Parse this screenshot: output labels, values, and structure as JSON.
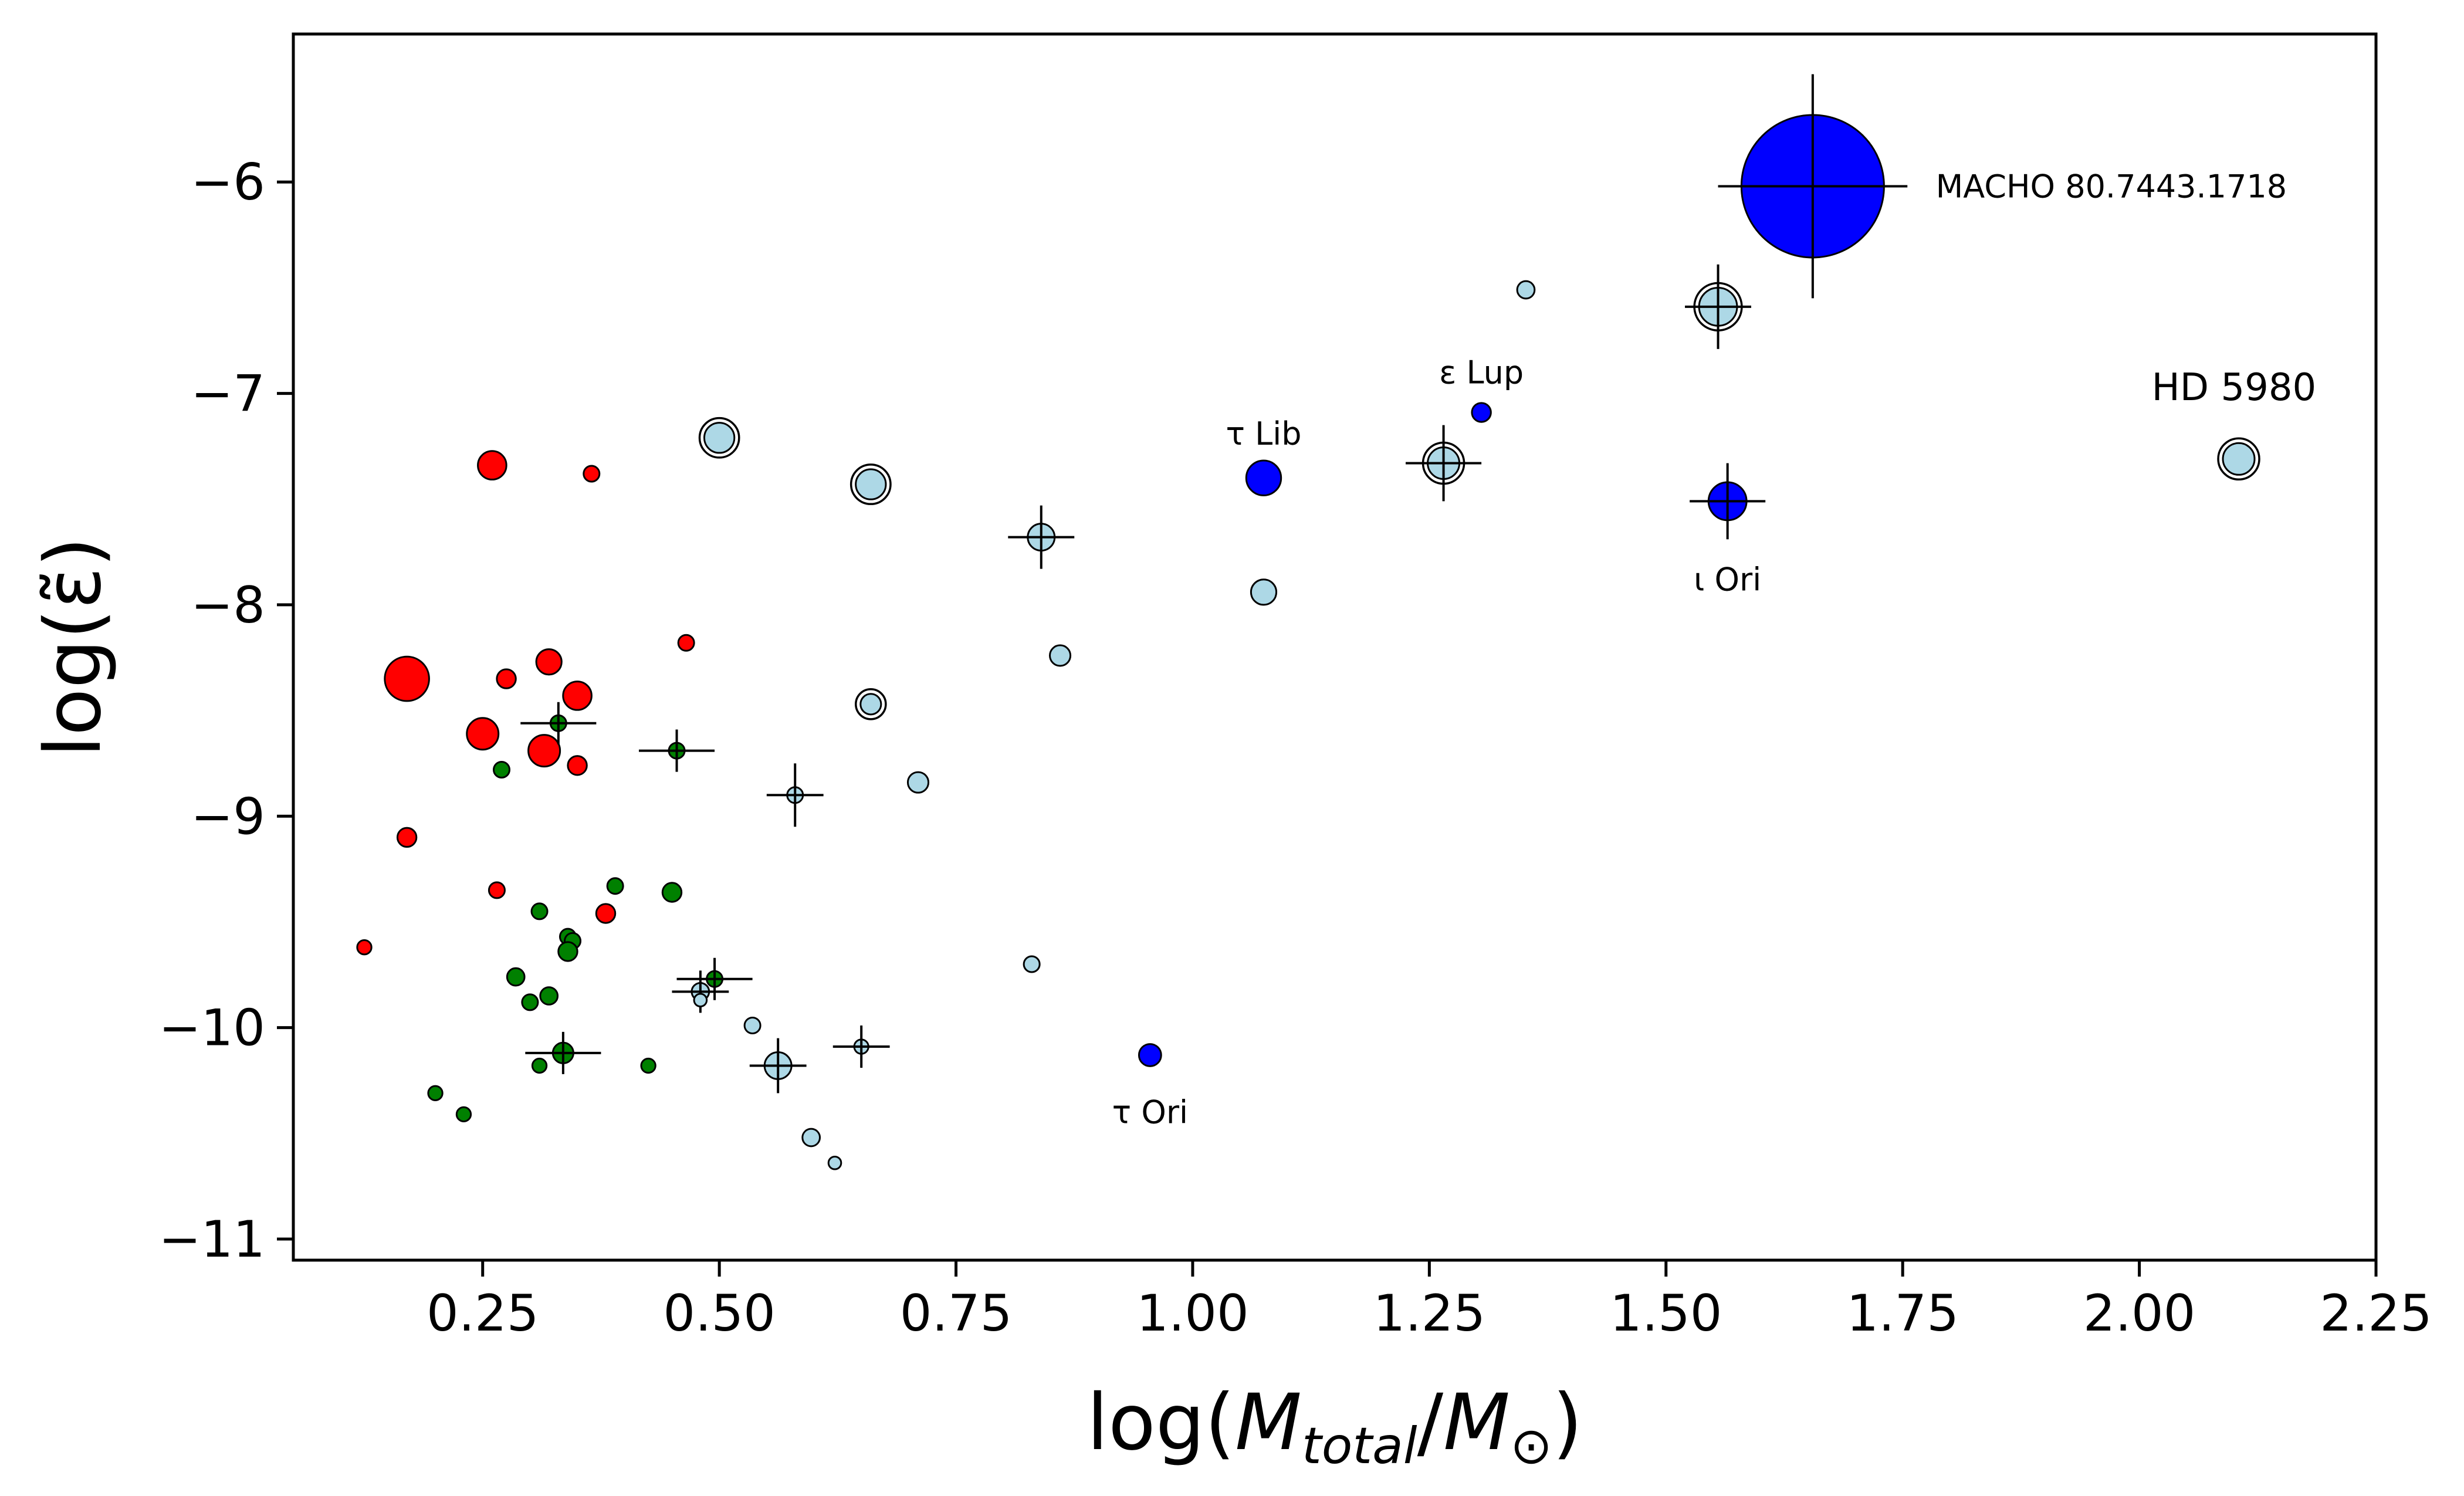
{
  "chart_data": {
    "type": "scatter",
    "title": "",
    "xlabel": "log(M_total/M_⊙)",
    "ylabel": "log(ε̃)",
    "xlim": [
      0.05,
      2.25
    ],
    "ylim": [
      -11.1,
      -5.3
    ],
    "xticks": [
      "0.25",
      "0.50",
      "0.75",
      "1.00",
      "1.25",
      "1.50",
      "1.75",
      "2.00",
      "2.25"
    ],
    "yticks": [
      "−11",
      "−10",
      "−9",
      "−8",
      "−7",
      "−6"
    ],
    "grid": false,
    "colors": {
      "red": "#ff0000",
      "green": "#008000",
      "lightblue": "#add8e6",
      "blue": "#0000ff"
    },
    "series": [
      {
        "name": "red",
        "color": "#ff0000",
        "points": [
          {
            "x": 0.17,
            "y": -8.35,
            "s": 14
          },
          {
            "x": 0.26,
            "y": -7.34,
            "s": 9
          },
          {
            "x": 0.365,
            "y": -7.38,
            "s": 5
          },
          {
            "x": 0.275,
            "y": -8.35,
            "s": 6
          },
          {
            "x": 0.32,
            "y": -8.27,
            "s": 8
          },
          {
            "x": 0.35,
            "y": -8.43,
            "s": 9
          },
          {
            "x": 0.25,
            "y": -8.61,
            "s": 10
          },
          {
            "x": 0.315,
            "y": -8.69,
            "s": 10
          },
          {
            "x": 0.35,
            "y": -8.76,
            "s": 6
          },
          {
            "x": 0.465,
            "y": -8.18,
            "s": 5
          },
          {
            "x": 0.17,
            "y": -9.1,
            "s": 6
          },
          {
            "x": 0.265,
            "y": -9.35,
            "s": 5
          },
          {
            "x": 0.38,
            "y": -9.46,
            "s": 6
          },
          {
            "x": 0.125,
            "y": -9.62,
            "s": 4.5
          }
        ]
      },
      {
        "name": "green",
        "color": "#008000",
        "points": [
          {
            "x": 0.33,
            "y": -8.56,
            "s": 5,
            "ex": 0.04,
            "ey": 0.1
          },
          {
            "x": 0.27,
            "y": -8.78,
            "s": 5
          },
          {
            "x": 0.455,
            "y": -8.69,
            "s": 5,
            "ex": 0.04,
            "ey": 0.1
          },
          {
            "x": 0.39,
            "y": -9.33,
            "s": 5
          },
          {
            "x": 0.45,
            "y": -9.36,
            "s": 6
          },
          {
            "x": 0.31,
            "y": -9.45,
            "s": 5
          },
          {
            "x": 0.34,
            "y": -9.57,
            "s": 5
          },
          {
            "x": 0.345,
            "y": -9.59,
            "s": 5
          },
          {
            "x": 0.34,
            "y": -9.64,
            "s": 6
          },
          {
            "x": 0.285,
            "y": -9.76,
            "s": 5.5
          },
          {
            "x": 0.32,
            "y": -9.85,
            "s": 5.5
          },
          {
            "x": 0.3,
            "y": -9.88,
            "s": 5
          },
          {
            "x": 0.495,
            "y": -9.77,
            "s": 5,
            "ex": 0.04,
            "ey": 0.1
          },
          {
            "x": 0.335,
            "y": -10.12,
            "s": 6.5,
            "ex": 0.04,
            "ey": 0.1
          },
          {
            "x": 0.31,
            "y": -10.18,
            "s": 4.5
          },
          {
            "x": 0.425,
            "y": -10.18,
            "s": 4.5
          },
          {
            "x": 0.2,
            "y": -10.31,
            "s": 4.5
          },
          {
            "x": 0.23,
            "y": -10.41,
            "s": 4.5
          }
        ]
      },
      {
        "name": "lightblue",
        "color": "#add8e6",
        "points": [
          {
            "x": 0.5,
            "y": -7.21,
            "s": 9.5,
            "ring": true
          },
          {
            "x": 0.66,
            "y": -7.43,
            "s": 9.5,
            "ring": true
          },
          {
            "x": 0.84,
            "y": -7.68,
            "s": 8.5,
            "ex": 0.035,
            "ey": 0.15
          },
          {
            "x": 1.075,
            "y": -7.94,
            "s": 8
          },
          {
            "x": 0.86,
            "y": -8.24,
            "s": 6.5
          },
          {
            "x": 0.66,
            "y": -8.47,
            "s": 6.5,
            "ring": true
          },
          {
            "x": 0.71,
            "y": -8.84,
            "s": 6.5
          },
          {
            "x": 0.58,
            "y": -8.9,
            "s": 5,
            "ex": 0.03,
            "ey": 0.15
          },
          {
            "x": 0.83,
            "y": -9.7,
            "s": 5
          },
          {
            "x": 0.48,
            "y": -9.83,
            "s": 5.5,
            "ex": 0.03,
            "ey": 0.1
          },
          {
            "x": 0.48,
            "y": -9.87,
            "s": 4
          },
          {
            "x": 0.535,
            "y": -9.99,
            "s": 5
          },
          {
            "x": 0.65,
            "y": -10.09,
            "s": 4.5,
            "ex": 0.03,
            "ey": 0.1
          },
          {
            "x": 0.562,
            "y": -10.18,
            "s": 8.5,
            "ex": 0.03,
            "ey": 0.13
          },
          {
            "x": 0.597,
            "y": -10.52,
            "s": 5.5
          },
          {
            "x": 0.622,
            "y": -10.64,
            "s": 4
          },
          {
            "x": 1.265,
            "y": -7.33,
            "s": 10,
            "ring": true,
            "ex": 0.04,
            "ey": 0.18
          },
          {
            "x": 1.352,
            "y": -6.51,
            "s": 5.5
          },
          {
            "x": 1.555,
            "y": -6.59,
            "s": 12,
            "ring": true,
            "ex": 0.035,
            "ey": 0.2
          },
          {
            "x": 2.105,
            "y": -7.31,
            "s": 10,
            "ring": true
          }
        ]
      },
      {
        "name": "blue",
        "color": "#0000ff",
        "points": [
          {
            "x": 1.075,
            "y": -7.4,
            "s": 11
          },
          {
            "x": 1.305,
            "y": -7.09,
            "s": 6
          },
          {
            "x": 1.565,
            "y": -7.51,
            "s": 12,
            "ex": 0.04,
            "ey": 0.18
          },
          {
            "x": 0.955,
            "y": -10.13,
            "s": 7
          },
          {
            "x": 1.655,
            "y": -6.02,
            "s": 45,
            "ex": 0.1,
            "ey": 0.53
          }
        ]
      }
    ],
    "annotations": [
      {
        "text": "MACHO 80.7443.1718",
        "x": 1.785,
        "y": -6.02,
        "anchor": "start",
        "size": 54
      },
      {
        "text": "ε Lup",
        "x": 1.305,
        "y": -6.9,
        "anchor": "middle",
        "size": 54
      },
      {
        "text": "τ Lib",
        "x": 1.075,
        "y": -7.19,
        "anchor": "middle",
        "size": 54
      },
      {
        "text": "HD 5980",
        "x": 2.1,
        "y": -6.97,
        "anchor": "middle",
        "size": 64
      },
      {
        "text": "ι Ori",
        "x": 1.565,
        "y": -7.88,
        "anchor": "middle",
        "size": 54
      },
      {
        "text": "τ Ori",
        "x": 0.955,
        "y": -10.4,
        "anchor": "middle",
        "size": 54
      }
    ]
  }
}
